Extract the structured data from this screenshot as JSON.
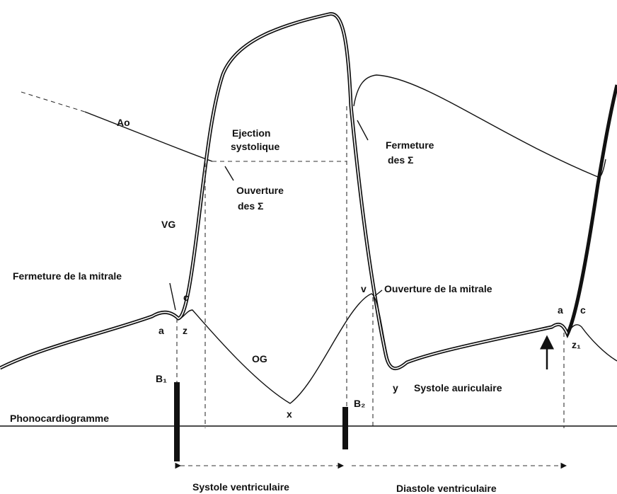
{
  "labels": [
    "Ao",
    "Ejection",
    "systolique",
    "Fermeture",
    "des Σ",
    "Ouverture",
    "des Σ",
    "VG",
    "Fermeture de la mitrale",
    "c",
    "a",
    "z",
    "OG",
    "x",
    "v",
    "Ouverture de la mitrale",
    "y",
    "Systole auriculaire",
    "a",
    "c",
    "z₁",
    "B₁",
    "B₂",
    "Phonocardiogramme",
    "Systole ventriculaire",
    "Diastole ventriculaire"
  ]
}
